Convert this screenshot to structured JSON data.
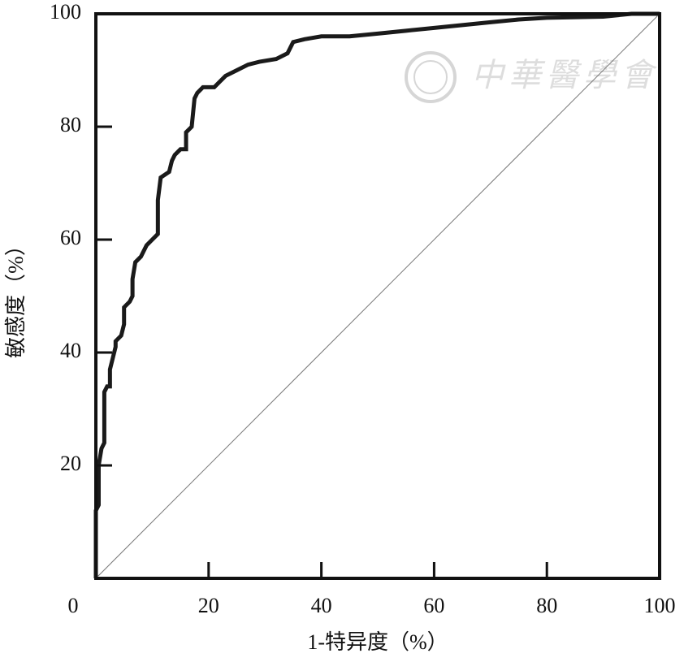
{
  "chart_data": {
    "type": "line",
    "x_label": "1-特异度（%）",
    "y_label": "敏感度（%）",
    "watermark": "中華醫學會",
    "xlim": [
      0,
      100
    ],
    "ylim": [
      0,
      100
    ],
    "xticks": [
      0,
      20,
      40,
      60,
      80,
      100
    ],
    "yticks": [
      20,
      40,
      60,
      80,
      100
    ],
    "grid": false,
    "series": [
      {
        "color": "#1a1a1a",
        "width": 5,
        "x": [
          0,
          0,
          0.5,
          0.5,
          1,
          1.5,
          1.5,
          2,
          2.5,
          2.5,
          3,
          3.5,
          3.5,
          4.5,
          5,
          5,
          6,
          6.5,
          6.5,
          7,
          8,
          8.5,
          9,
          10,
          11,
          11,
          11.5,
          13,
          13.5,
          14,
          15,
          16,
          16,
          17,
          17.5,
          18,
          19,
          21,
          22,
          23,
          25,
          27,
          29,
          32,
          34,
          35,
          37,
          40,
          45,
          50,
          55,
          60,
          65,
          70,
          75,
          80,
          90,
          95,
          100
        ],
        "values": [
          0,
          12,
          13,
          20,
          23,
          24,
          33,
          34,
          34,
          37,
          39,
          41,
          42,
          43,
          45,
          48,
          49,
          50,
          53,
          56,
          57,
          58,
          59,
          60,
          61,
          67,
          71,
          72,
          74,
          75,
          76,
          76,
          79,
          80,
          85,
          86,
          87,
          87,
          88,
          89,
          90,
          91,
          91.5,
          92,
          93,
          95,
          95.5,
          96,
          96,
          96.5,
          97,
          97.5,
          98,
          98.5,
          99,
          99.3,
          99.5,
          100,
          100
        ]
      },
      {
        "color": "#777777",
        "width": 1,
        "x": [
          0,
          100
        ],
        "values": [
          0,
          100
        ]
      }
    ]
  }
}
